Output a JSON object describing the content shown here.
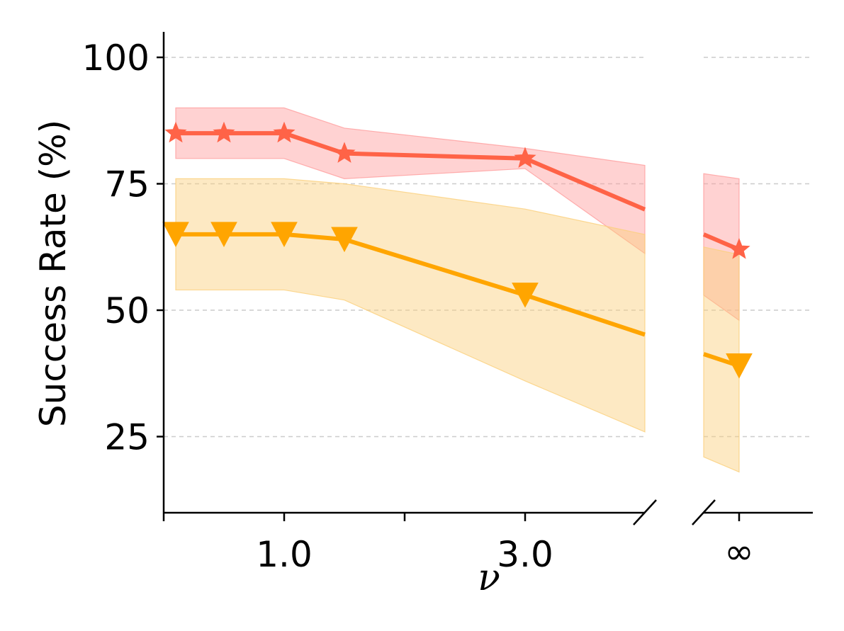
{
  "chart_data": {
    "type": "line",
    "title": "",
    "xlabel": "ν",
    "ylabel": "Success Rate (%)",
    "ylim": [
      10,
      105
    ],
    "xlim_left": [
      0,
      4
    ],
    "x_ticks": [
      "1.0",
      "3.0"
    ],
    "break_tick": "∞",
    "y_ticks": [
      "25",
      "50",
      "75",
      "100"
    ],
    "y_tick_values": [
      25,
      50,
      75,
      100
    ],
    "grid": "y-dashed",
    "series": [
      {
        "marker": "star",
        "color": "#ff6347",
        "band_color": "#ff9c9c",
        "x": [
          0.1,
          0.5,
          1.0,
          1.5,
          3.0,
          "∞"
        ],
        "values": [
          85,
          85,
          85,
          81,
          80,
          62
        ],
        "lower": [
          80,
          80,
          80,
          76,
          78,
          48
        ],
        "upper": [
          90,
          90,
          90,
          86,
          82,
          76
        ]
      },
      {
        "marker": "triangle-down",
        "color": "#ffa500",
        "band_color": "#fbcf7a",
        "x": [
          0.1,
          0.5,
          1.0,
          1.5,
          3.0,
          "∞"
        ],
        "values": [
          65,
          65,
          65,
          64,
          53,
          39
        ],
        "lower": [
          54,
          54,
          54,
          52,
          36,
          18
        ],
        "upper": [
          76,
          76,
          76,
          75,
          70,
          61
        ]
      }
    ]
  }
}
